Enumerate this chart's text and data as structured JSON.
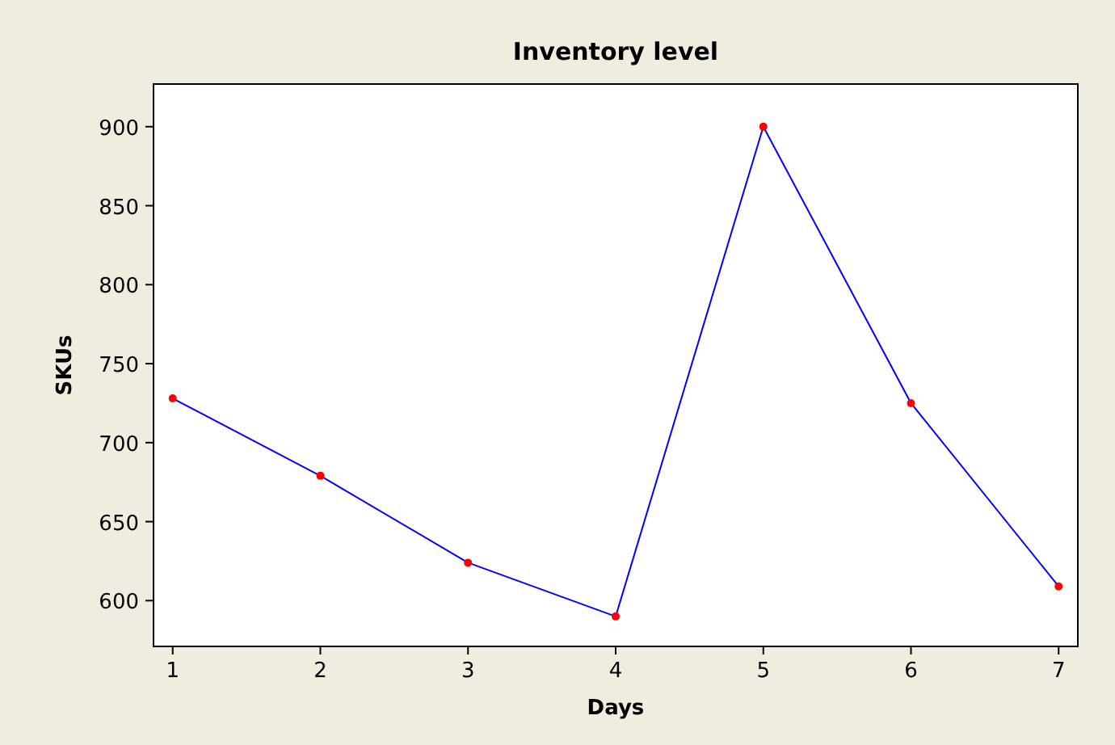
{
  "chart_data": {
    "type": "line",
    "title": "Inventory level",
    "xlabel": "Days",
    "ylabel": "SKUs",
    "x": [
      1,
      2,
      3,
      4,
      5,
      6,
      7
    ],
    "series": [
      {
        "color": "#0000ff",
        "colors": [
          "#ff0000",
          "#ff0000",
          "#ff0000",
          "#ff0000",
          "#ff0000",
          "#ff0000",
          "#ff0000"
        ],
        "values": [
          728,
          679,
          624,
          590,
          900,
          725,
          609
        ]
      }
    ],
    "xlim": [
      0.87,
      7.13
    ],
    "xticks": [
      1,
      2,
      3,
      4,
      5,
      6,
      7
    ],
    "ylim": [
      571,
      927
    ],
    "yticks": [
      600,
      650,
      700,
      750,
      800,
      850,
      900
    ],
    "marker": "circle",
    "line_style": "solid"
  }
}
